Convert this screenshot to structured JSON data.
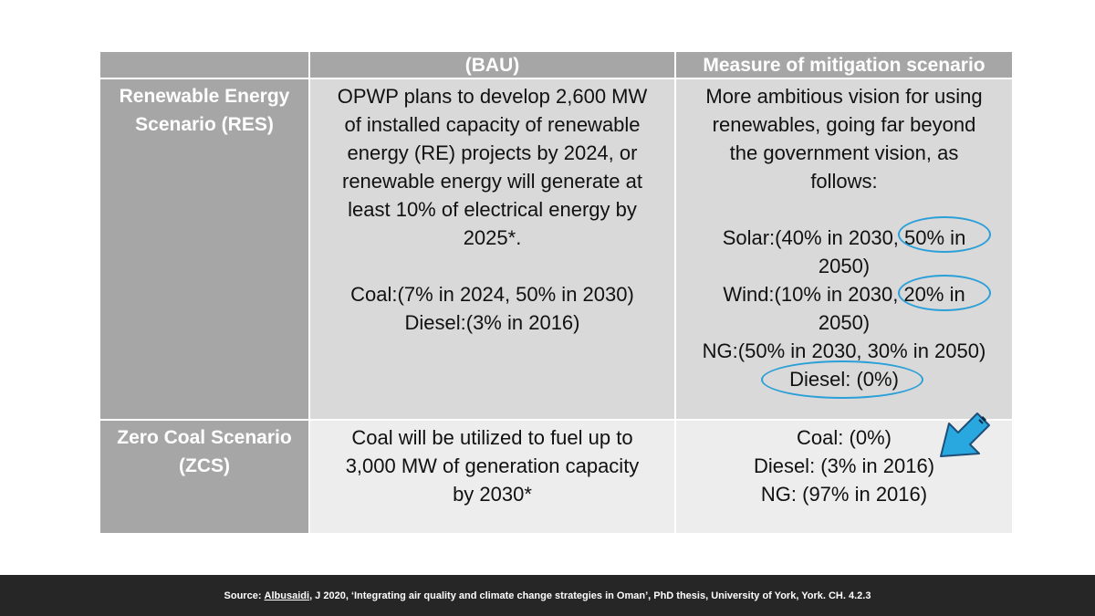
{
  "table": {
    "headers": [
      "",
      "(BAU)",
      "Measure of mitigation scenario"
    ],
    "rows": [
      {
        "scenario": [
          "Renewable Energy",
          "Scenario (RES)"
        ],
        "bau": [
          "OPWP plans to develop 2,600 MW",
          "of installed capacity of renewable",
          "energy (RE) projects by 2024, or",
          "renewable energy will generate at",
          "least 10% of electrical energy by",
          "2025*.",
          "",
          "Coal:(7% in 2024, 50% in 2030)",
          "Diesel:(3% in 2016)"
        ],
        "mitigation": [
          "More ambitious vision for using",
          "renewables, going far beyond",
          "the government vision, as",
          "follows:",
          "",
          "Solar:(40% in 2030, 50% in",
          "2050)",
          "Wind:(10% in 2030, 20% in",
          "2050)",
          "NG:(50% in 2030, 30% in 2050)",
          "Diesel: (0%)"
        ]
      },
      {
        "scenario": [
          "Zero Coal Scenario",
          "(ZCS)"
        ],
        "bau": [
          "Coal will be utilized to fuel up to",
          "3,000 MW of generation capacity",
          "by 2030*"
        ],
        "mitigation": [
          "Coal: (0%)",
          "Diesel: (3% in 2016)",
          "NG: (97% in 2016)"
        ]
      }
    ]
  },
  "footer": {
    "prefix": "Source: ",
    "author": "Albusaidi",
    "rest": ", J 2020, ‘Integrating air quality and climate change strategies in Oman’, PhD thesis, University of York, York. CH. 4.2.3"
  },
  "colors": {
    "header": "#a6a6a6",
    "row1": "#d9d9d9",
    "row2": "#ededed",
    "accent": "#29a8e0",
    "footer": "#262626"
  }
}
